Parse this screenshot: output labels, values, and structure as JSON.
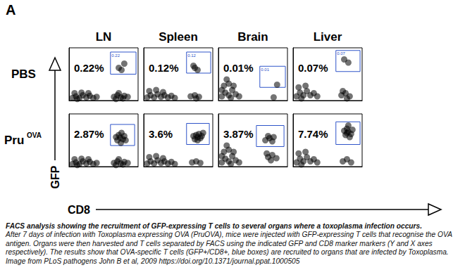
{
  "panel_label": "A",
  "x_label": "CD8",
  "y_label": "GFP",
  "columns": [
    "LN",
    "Spleen",
    "Brain",
    "Liver"
  ],
  "rows": [
    "PBS",
    {
      "text": "Pru",
      "superscript": "OVA"
    }
  ],
  "chart_data": [
    {
      "type": "scatter",
      "xlim": [
        0,
        100
      ],
      "ylim": [
        0,
        100
      ],
      "tick_labels": false,
      "color": "#000000",
      "annotation": "0.22%",
      "gate_label": "0.22",
      "gate": {
        "x": [
          60,
          97
        ],
        "y": [
          50,
          92
        ]
      },
      "points": [
        [
          5,
          5
        ],
        [
          10,
          8
        ],
        [
          15,
          5
        ],
        [
          20,
          10
        ],
        [
          25,
          6
        ],
        [
          30,
          9
        ],
        [
          35,
          5
        ],
        [
          8,
          14
        ],
        [
          18,
          15
        ],
        [
          28,
          14
        ],
        [
          12,
          3
        ],
        [
          40,
          7
        ],
        [
          65,
          7
        ],
        [
          70,
          10
        ],
        [
          75,
          6
        ],
        [
          80,
          9
        ],
        [
          85,
          7
        ],
        [
          72,
          14
        ],
        [
          78,
          4
        ],
        [
          68,
          3
        ],
        [
          72,
          62
        ],
        [
          80,
          70
        ],
        [
          76,
          58
        ]
      ]
    },
    {
      "type": "scatter",
      "xlim": [
        0,
        100
      ],
      "ylim": [
        0,
        100
      ],
      "tick_labels": false,
      "color": "#000000",
      "annotation": "0.12%",
      "gate_label": "0.12",
      "gate": {
        "x": [
          62,
          97
        ],
        "y": [
          52,
          92
        ]
      },
      "points": [
        [
          5,
          6
        ],
        [
          10,
          10
        ],
        [
          15,
          6
        ],
        [
          20,
          12
        ],
        [
          25,
          7
        ],
        [
          30,
          10
        ],
        [
          35,
          6
        ],
        [
          40,
          9
        ],
        [
          8,
          18
        ],
        [
          18,
          20
        ],
        [
          28,
          16
        ],
        [
          45,
          5
        ],
        [
          68,
          8
        ],
        [
          74,
          10
        ],
        [
          80,
          7
        ],
        [
          76,
          4
        ],
        [
          74,
          62
        ],
        [
          78,
          58
        ],
        [
          72,
          66
        ]
      ]
    },
    {
      "type": "scatter",
      "xlim": [
        0,
        100
      ],
      "ylim": [
        0,
        100
      ],
      "tick_labels": false,
      "color": "#000000",
      "annotation": "0.01%",
      "gate_label": "0.01",
      "gate": {
        "x": [
          60,
          97
        ],
        "y": [
          25,
          65
        ]
      },
      "points": [
        [
          5,
          8
        ],
        [
          10,
          15
        ],
        [
          15,
          10
        ],
        [
          20,
          20
        ],
        [
          25,
          12
        ],
        [
          8,
          28
        ],
        [
          15,
          32
        ],
        [
          22,
          28
        ],
        [
          12,
          40
        ],
        [
          30,
          8
        ],
        [
          18,
          5
        ],
        [
          5,
          20
        ],
        [
          80,
          6
        ],
        [
          85,
          30
        ]
      ]
    },
    {
      "type": "scatter",
      "xlim": [
        0,
        100
      ],
      "ylim": [
        0,
        100
      ],
      "tick_labels": false,
      "color": "#000000",
      "annotation": "0.07%",
      "gate_label": "0.07",
      "gate": {
        "x": [
          62,
          97
        ],
        "y": [
          55,
          95
        ]
      },
      "points": [
        [
          5,
          8
        ],
        [
          10,
          15
        ],
        [
          15,
          10
        ],
        [
          20,
          18
        ],
        [
          25,
          10
        ],
        [
          30,
          14
        ],
        [
          8,
          25
        ],
        [
          18,
          28
        ],
        [
          35,
          8
        ],
        [
          12,
          4
        ],
        [
          70,
          10
        ],
        [
          76,
          14
        ],
        [
          82,
          8
        ],
        [
          78,
          4
        ],
        [
          72,
          18
        ],
        [
          80,
          72
        ],
        [
          74,
          78
        ]
      ]
    },
    {
      "type": "scatter",
      "xlim": [
        0,
        100
      ],
      "ylim": [
        0,
        100
      ],
      "tick_labels": false,
      "color": "#000000",
      "annotation": "2.87%",
      "gate": {
        "x": [
          60,
          95
        ],
        "y": [
          40,
          80
        ]
      },
      "points": [
        [
          5,
          5
        ],
        [
          10,
          8
        ],
        [
          15,
          5
        ],
        [
          20,
          10
        ],
        [
          25,
          6
        ],
        [
          30,
          9
        ],
        [
          35,
          5
        ],
        [
          8,
          14
        ],
        [
          18,
          15
        ],
        [
          28,
          14
        ],
        [
          12,
          3
        ],
        [
          40,
          7
        ],
        [
          65,
          7
        ],
        [
          70,
          10
        ],
        [
          75,
          6
        ],
        [
          80,
          9
        ],
        [
          85,
          7
        ],
        [
          72,
          14
        ],
        [
          78,
          4
        ],
        [
          68,
          3
        ],
        [
          70,
          50
        ],
        [
          74,
          55
        ],
        [
          78,
          52
        ],
        [
          72,
          60
        ],
        [
          80,
          58
        ],
        [
          76,
          64
        ],
        [
          68,
          56
        ],
        [
          82,
          50
        ],
        [
          75,
          45
        ]
      ]
    },
    {
      "type": "scatter",
      "xlim": [
        0,
        100
      ],
      "ylim": [
        0,
        100
      ],
      "tick_labels": false,
      "color": "#000000",
      "annotation": "3.6%",
      "gate": {
        "x": [
          62,
          95
        ],
        "y": [
          42,
          82
        ]
      },
      "points": [
        [
          5,
          6
        ],
        [
          10,
          10
        ],
        [
          15,
          6
        ],
        [
          20,
          12
        ],
        [
          25,
          7
        ],
        [
          30,
          10
        ],
        [
          35,
          6
        ],
        [
          40,
          9
        ],
        [
          8,
          18
        ],
        [
          18,
          20
        ],
        [
          28,
          16
        ],
        [
          45,
          5
        ],
        [
          70,
          8
        ],
        [
          76,
          10
        ],
        [
          82,
          7
        ],
        [
          74,
          52
        ],
        [
          78,
          56
        ],
        [
          82,
          54
        ],
        [
          76,
          60
        ],
        [
          80,
          62
        ],
        [
          72,
          58
        ],
        [
          84,
          58
        ],
        [
          78,
          50
        ],
        [
          86,
          64
        ]
      ]
    },
    {
      "type": "scatter",
      "xlim": [
        0,
        100
      ],
      "ylim": [
        0,
        100
      ],
      "tick_labels": false,
      "color": "#000000",
      "annotation": "3.87%",
      "gate": {
        "x": [
          55,
          95
        ],
        "y": [
          38,
          78
        ]
      },
      "points": [
        [
          5,
          8
        ],
        [
          10,
          15
        ],
        [
          15,
          10
        ],
        [
          20,
          20
        ],
        [
          25,
          12
        ],
        [
          8,
          28
        ],
        [
          15,
          32
        ],
        [
          22,
          28
        ],
        [
          12,
          40
        ],
        [
          30,
          8
        ],
        [
          18,
          5
        ],
        [
          5,
          20
        ],
        [
          68,
          50
        ],
        [
          74,
          54
        ],
        [
          78,
          48
        ],
        [
          72,
          58
        ],
        [
          80,
          56
        ],
        [
          72,
          18
        ],
        [
          78,
          22
        ],
        [
          84,
          16
        ],
        [
          76,
          12
        ],
        [
          70,
          25
        ]
      ]
    },
    {
      "type": "scatter",
      "xlim": [
        0,
        100
      ],
      "ylim": [
        0,
        100
      ],
      "tick_labels": false,
      "color": "#000000",
      "annotation": "7.74%",
      "gate": {
        "x": [
          62,
          97
        ],
        "y": [
          42,
          85
        ]
      },
      "points": [
        [
          5,
          8
        ],
        [
          10,
          15
        ],
        [
          15,
          10
        ],
        [
          20,
          18
        ],
        [
          25,
          10
        ],
        [
          30,
          14
        ],
        [
          8,
          25
        ],
        [
          18,
          28
        ],
        [
          35,
          8
        ],
        [
          12,
          4
        ],
        [
          72,
          10
        ],
        [
          78,
          14
        ],
        [
          84,
          8
        ],
        [
          76,
          60
        ],
        [
          80,
          66
        ],
        [
          84,
          62
        ],
        [
          78,
          72
        ],
        [
          82,
          56
        ],
        [
          74,
          68
        ],
        [
          86,
          70
        ],
        [
          80,
          78
        ],
        [
          78,
          64
        ]
      ]
    }
  ],
  "caption": {
    "heading": "FACS analysis showing the recruitment of GFP-expressing T cells to several organs where a toxoplasma infection occurs.",
    "text": "After 7 days of infection with Toxoplasma expressing OVA (PruOVA), mice were injected with GFP-expressing T cells that recognise the OVA antigen. Organs were then harvested and T cells separated by FACS using the indicated GFP and CD8 marker markers (Y and X axes respectively). The results show that OVA-specific T cells (GFP+/CD8+, blue boxes) are recruited to organs that are infected by Toxoplasma. Image from PLoS pathogens John B et al, 2009 https://doi.org/10.1371/journal.ppat.1000505"
  }
}
